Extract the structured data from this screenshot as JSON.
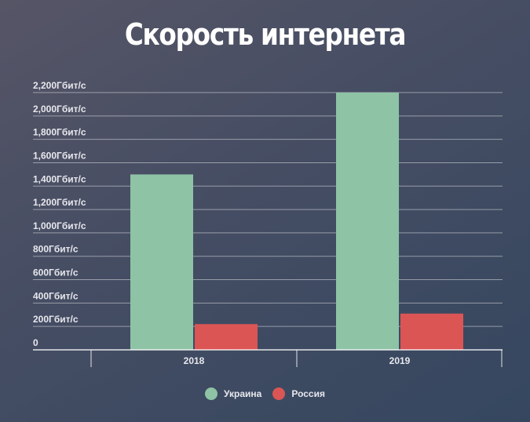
{
  "chart_data": {
    "type": "bar",
    "title": "Скорость интернета",
    "categories": [
      "2018",
      "2019"
    ],
    "series": [
      {
        "name": "Украина",
        "values": [
          1500,
          2200
        ],
        "color": "#8ec3a6"
      },
      {
        "name": "Россия",
        "values": [
          220,
          310
        ],
        "color": "#db5555"
      }
    ],
    "ylim": [
      0,
      2200
    ],
    "yticks": [
      "0",
      "200Гбит/с",
      "400Гбит/с",
      "600Гбит/с",
      "800Гбит/с",
      "1,000Гбит/с",
      "1,200Гбит/с",
      "1,400Гбит/с",
      "1,600Гбит/с",
      "1,800Гбит/с",
      "2,000Гбит/с",
      "2,200Гбит/с"
    ],
    "grid": true,
    "legend": "bottom-center"
  }
}
